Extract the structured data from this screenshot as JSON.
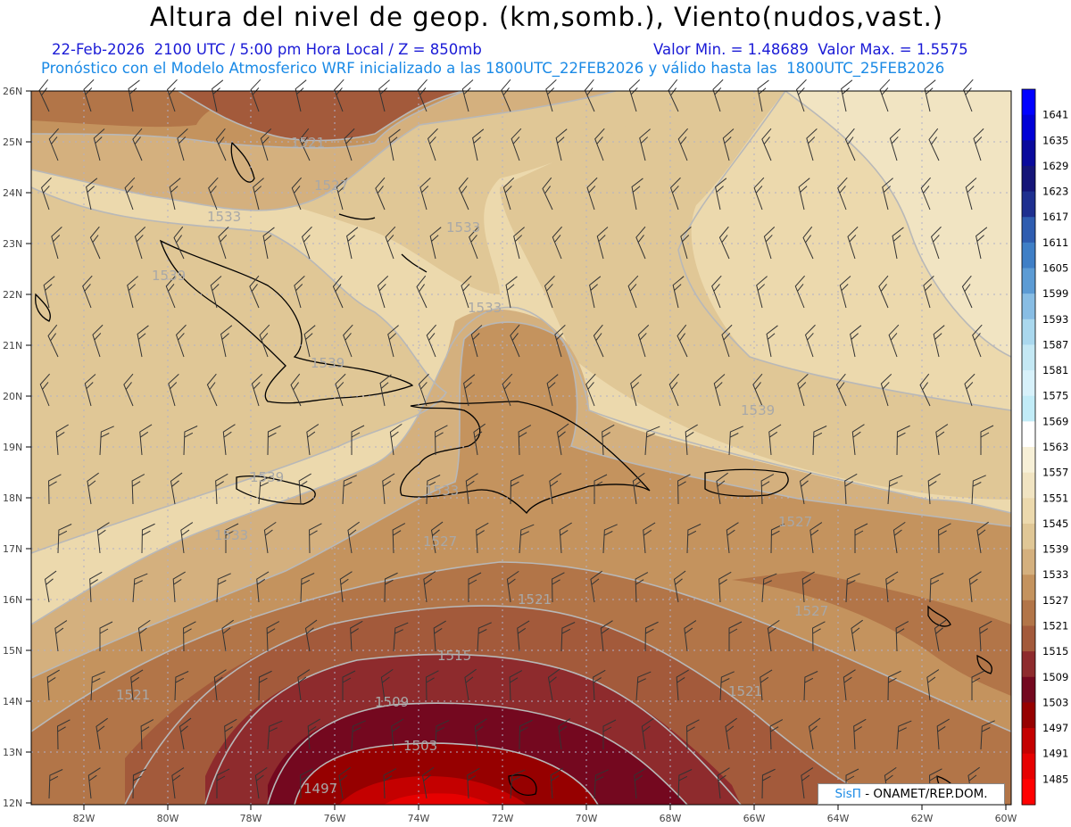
{
  "title": "Altura del nivel de geop. (km,somb.), Viento(nudos,vast.)",
  "subtitle_left": "22-Feb-2026  2100 UTC / 5:00 pm Hora Local / Z = 850mb",
  "subtitle_right": "Valor Min. = 1.48689  Valor Max. = 1.5575",
  "subtitle2": "Pronóstico con el Modelo Atmosferico WRF inicializado a las 1800UTC_22FEB2026 y válido hasta las  1800UTC_25FEB2026",
  "credit": {
    "brand": "SisΠ",
    "rest": " - ONAMET/REP.DOM."
  },
  "lat_labels": [
    "26N",
    "25N",
    "24N",
    "23N",
    "22N",
    "21N",
    "20N",
    "19N",
    "18N",
    "17N",
    "16N",
    "15N",
    "14N",
    "13N",
    "12N"
  ],
  "lon_labels": [
    "82W",
    "80W",
    "78W",
    "76W",
    "74W",
    "72W",
    "70W",
    "68W",
    "66W",
    "64W",
    "62W",
    "60W"
  ],
  "colorbar": [
    {
      "label": "1641",
      "color": "#0000ff"
    },
    {
      "label": "1635",
      "color": "#0000d6"
    },
    {
      "label": "1629",
      "color": "#0a0a9c"
    },
    {
      "label": "1623",
      "color": "#151578"
    },
    {
      "label": "1617",
      "color": "#1e2f8f"
    },
    {
      "label": "1611",
      "color": "#2f5db0"
    },
    {
      "label": "1605",
      "color": "#3f7fc6"
    },
    {
      "label": "1599",
      "color": "#5c9bd4"
    },
    {
      "label": "1593",
      "color": "#88bde4"
    },
    {
      "label": "1587",
      "color": "#aad8ee"
    },
    {
      "label": "1581",
      "color": "#c4e8f4"
    },
    {
      "label": "1575",
      "color": "#d7f1fa"
    },
    {
      "label": "1569",
      "color": "#c2ecf7"
    },
    {
      "label": "1563",
      "color": "#ffffff"
    },
    {
      "label": "1557",
      "color": "#f7f0d7"
    },
    {
      "label": "1551",
      "color": "#f1e4c2"
    },
    {
      "label": "1545",
      "color": "#ecd9ad"
    },
    {
      "label": "1539",
      "color": "#e0c796"
    },
    {
      "label": "1533",
      "color": "#d4b07e"
    },
    {
      "label": "1527",
      "color": "#c4935e"
    },
    {
      "label": "1521",
      "color": "#b27548"
    },
    {
      "label": "1515",
      "color": "#a35a3b"
    },
    {
      "label": "1509",
      "color": "#8e2b2d"
    },
    {
      "label": "1503",
      "color": "#74081f"
    },
    {
      "label": "1497",
      "color": "#960000"
    },
    {
      "label": "1491",
      "color": "#c40000"
    },
    {
      "label": "1485",
      "color": "#e60000"
    },
    {
      "label": "",
      "color": "#ff0000"
    }
  ],
  "contour_labels": [
    "1521",
    "1527",
    "1533",
    "1533",
    "1539",
    "1533",
    "1539",
    "1539",
    "1539",
    "1533",
    "1533",
    "1527",
    "1521",
    "1515",
    "1509",
    "1503",
    "1497",
    "1521",
    "1527",
    "1521",
    "1527"
  ]
}
